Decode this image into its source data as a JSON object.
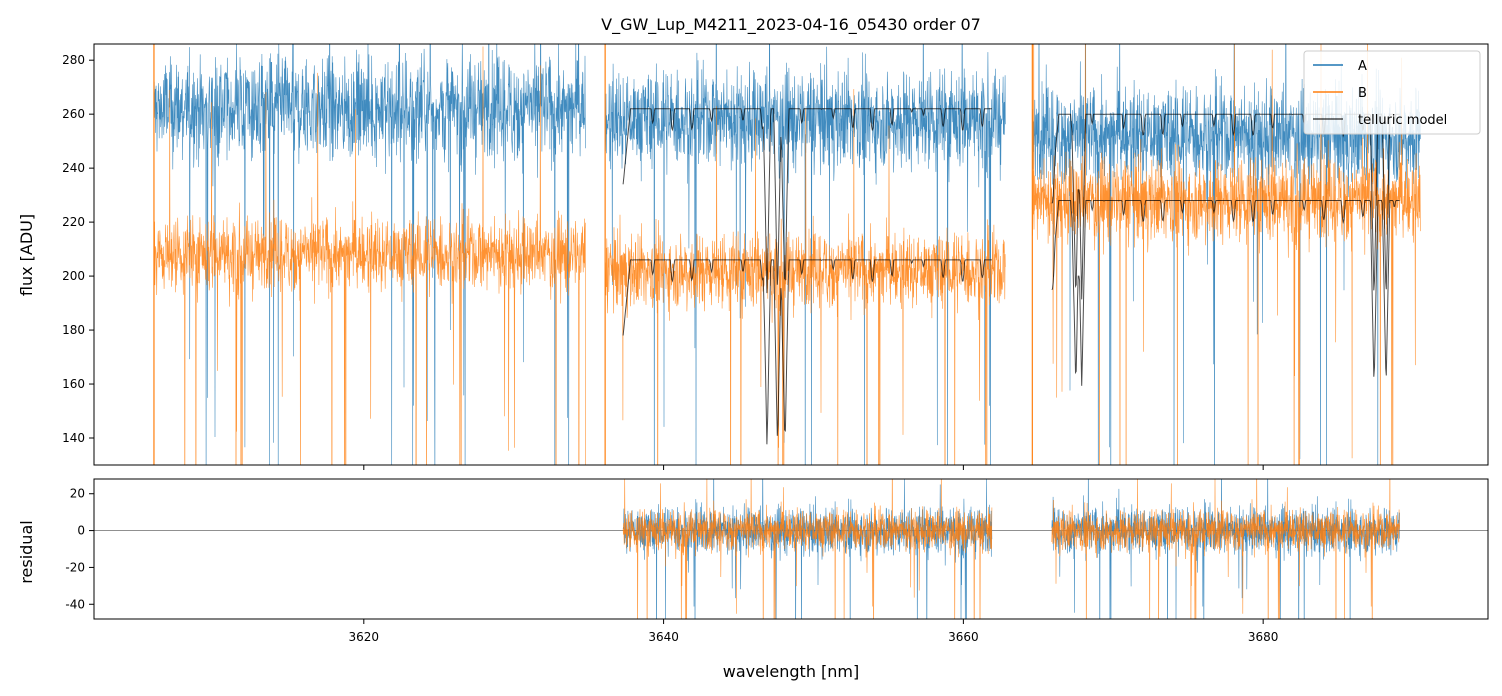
{
  "chart_data": [
    {
      "type": "line",
      "title": "V_GW_Lup_M4211_2023-04-16_05430  order 07",
      "xlabel": "",
      "ylabel": "flux [ADU]",
      "xlim": [
        3602,
        3695
      ],
      "ylim": [
        130,
        286
      ],
      "yticks": [
        140,
        160,
        180,
        200,
        220,
        240,
        260,
        280
      ],
      "xticks": [
        3620,
        3640,
        3660,
        3680
      ],
      "legend": {
        "position": "top-right",
        "entries": [
          {
            "label": "A",
            "color": "#1f77b4"
          },
          {
            "label": "B",
            "color": "#ff7f0e"
          },
          {
            "label": "telluric model",
            "color": "#000000"
          }
        ]
      },
      "series": [
        {
          "name": "A",
          "color": "#1f77b4",
          "segments": [
            {
              "x": [
                3606.0,
                3634.8
              ],
              "level": 262,
              "noise": 14
            },
            {
              "x": [
                3636.1,
                3662.8
              ],
              "level": 258,
              "noise": 13
            },
            {
              "x": [
                3664.6,
                3690.5
              ],
              "level": 252,
              "noise": 13
            }
          ]
        },
        {
          "name": "B",
          "color": "#ff7f0e",
          "segments": [
            {
              "x": [
                3606.0,
                3634.8
              ],
              "level": 208,
              "noise": 10
            },
            {
              "x": [
                3636.1,
                3662.8
              ],
              "level": 202,
              "noise": 10
            },
            {
              "x": [
                3664.6,
                3690.5
              ],
              "level": 228,
              "noise": 11
            }
          ]
        },
        {
          "name": "telluric model (A)",
          "color": "#000000",
          "segments": [
            {
              "x": [
                3637.3,
                3661.9
              ],
              "level": 262
            },
            {
              "x": [
                3665.9,
                3689.1
              ],
              "level": 260
            }
          ]
        },
        {
          "name": "telluric model (B)",
          "color": "#000000",
          "segments": [
            {
              "x": [
                3637.3,
                3661.9
              ],
              "level": 206
            },
            {
              "x": [
                3665.9,
                3689.1
              ],
              "level": 228
            }
          ]
        }
      ]
    },
    {
      "type": "line",
      "title": "",
      "xlabel": "wavelength [nm]",
      "ylabel": "residual",
      "xlim": [
        3602,
        3695
      ],
      "ylim": [
        -48,
        28
      ],
      "yticks": [
        -40,
        -20,
        0,
        20
      ],
      "xticks": [
        3620,
        3640,
        3660,
        3680
      ],
      "reference_line": 0,
      "series": [
        {
          "name": "A",
          "color": "#1f77b4",
          "segments": [
            {
              "x": [
                3637.3,
                3661.9
              ],
              "level": 0,
              "noise": 9
            },
            {
              "x": [
                3665.9,
                3689.1
              ],
              "level": 0,
              "noise": 9
            }
          ]
        },
        {
          "name": "B",
          "color": "#ff7f0e",
          "segments": [
            {
              "x": [
                3637.3,
                3661.9
              ],
              "level": 0,
              "noise": 8
            },
            {
              "x": [
                3665.9,
                3689.1
              ],
              "level": 0,
              "noise": 8
            }
          ]
        }
      ]
    }
  ]
}
